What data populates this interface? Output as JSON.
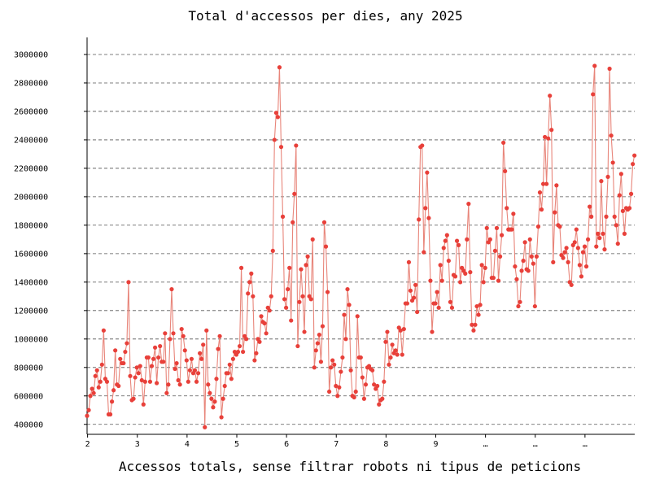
{
  "chart_data": {
    "type": "line",
    "title": "Total d'accessos per dies, any 2025",
    "xlabel": "Accessos totals, sense filtrar robots ni tipus de peticions",
    "ylabel": "",
    "grid": true,
    "ylim": [
      330000,
      3120000
    ],
    "xlim": [
      1.99,
      13.0
    ],
    "y_ticks": [
      400000,
      600000,
      800000,
      1000000,
      1200000,
      1400000,
      1600000,
      1800000,
      2000000,
      2200000,
      2400000,
      2600000,
      2800000,
      3000000
    ],
    "y_tick_labels": [
      "400000",
      "600000",
      "800000",
      "1000000",
      "1200000",
      "1400000",
      "1600000",
      "1800000",
      "2000000",
      "2200000",
      "2400000",
      "2600000",
      "2800000",
      "3000000"
    ],
    "x_ticks": [
      2,
      3,
      4,
      5,
      6,
      7,
      8,
      9,
      10,
      11,
      12
    ],
    "x_tick_labels": [
      "2",
      "3",
      "4",
      "5",
      "6",
      "7",
      "8",
      "9",
      "…",
      "…",
      "…"
    ],
    "colors": {
      "line": "#e8857a",
      "point": "#e8403a",
      "grid": "#555555"
    },
    "series": [
      {
        "values": [
          460000,
          500000,
          600000,
          650000,
          620000,
          740000,
          780000,
          660000,
          700000,
          820000,
          1060000,
          720000,
          700000,
          470000,
          470000,
          560000,
          640000,
          920000,
          680000,
          670000,
          860000,
          830000,
          830000,
          910000,
          970000,
          1400000,
          740000,
          570000,
          580000,
          730000,
          800000,
          760000,
          810000,
          710000,
          540000,
          700000,
          870000,
          870000,
          700000,
          810000,
          860000,
          940000,
          690000,
          870000,
          950000,
          840000,
          840000,
          1040000,
          620000,
          680000,
          1000000,
          1350000,
          1040000,
          790000,
          830000,
          710000,
          680000,
          1070000,
          1020000,
          920000,
          850000,
          700000,
          780000,
          860000,
          760000,
          780000,
          700000,
          760000,
          900000,
          860000,
          960000,
          380000,
          1060000,
          680000,
          620000,
          580000,
          520000,
          560000,
          720000,
          930000,
          1020000,
          450000,
          580000,
          670000,
          760000,
          760000,
          820000,
          720000,
          860000,
          910000,
          890000,
          910000,
          950000,
          1500000,
          910000,
          1020000,
          1000000,
          1320000,
          1400000,
          1460000,
          1300000,
          850000,
          900000,
          1000000,
          980000,
          1160000,
          1120000,
          1110000,
          1040000,
          1220000,
          1200000,
          1300000,
          1620000,
          2400000,
          2590000,
          2560000,
          2910000,
          2350000,
          1860000,
          1280000,
          1220000,
          1350000,
          1500000,
          1130000,
          1820000,
          2020000,
          2360000,
          950000,
          1260000,
          1490000,
          1300000,
          1050000,
          1520000,
          1580000,
          1300000,
          1280000,
          1700000,
          800000,
          920000,
          970000,
          1030000,
          840000,
          1090000,
          1820000,
          1650000,
          1330000,
          630000,
          800000,
          850000,
          820000,
          670000,
          600000,
          660000,
          770000,
          870000,
          1170000,
          1000000,
          1350000,
          1240000,
          780000,
          600000,
          590000,
          630000,
          1160000,
          870000,
          870000,
          730000,
          580000,
          680000,
          800000,
          810000,
          790000,
          780000,
          680000,
          650000,
          670000,
          540000,
          570000,
          580000,
          700000,
          980000,
          1050000,
          820000,
          870000,
          960000,
          900000,
          920000,
          890000,
          1080000,
          1060000,
          890000,
          1070000,
          1250000,
          1250000,
          1540000,
          1340000,
          1270000,
          1290000,
          1380000,
          1190000,
          1840000,
          2350000,
          2360000,
          1610000,
          1920000,
          2170000,
          1850000,
          1410000,
          1050000,
          1250000,
          1250000,
          1330000,
          1220000,
          1520000,
          1410000,
          1640000,
          1690000,
          1730000,
          1550000,
          1260000,
          1220000,
          1450000,
          1440000,
          1690000,
          1660000,
          1400000,
          1500000,
          1480000,
          1460000,
          1700000,
          1950000,
          1470000,
          1100000,
          1060000,
          1100000,
          1230000,
          1170000,
          1240000,
          1520000,
          1400000,
          1500000,
          1780000,
          1680000,
          1700000,
          1430000,
          1430000,
          1620000,
          1780000,
          1410000,
          1580000,
          1730000,
          2380000,
          2180000,
          1920000,
          1770000,
          1770000,
          1770000,
          1880000,
          1510000,
          1420000,
          1230000,
          1260000,
          1480000,
          1550000,
          1680000,
          1490000,
          1480000,
          1700000,
          1580000,
          1530000,
          1230000,
          1580000,
          1790000,
          2030000,
          1910000,
          2090000,
          2420000,
          2090000,
          2410000,
          2710000,
          2470000,
          1540000,
          1890000,
          2080000,
          1800000,
          1790000,
          1590000,
          1570000,
          1610000,
          1640000,
          1540000,
          1400000,
          1380000,
          1660000,
          1680000,
          1770000,
          1640000,
          1520000,
          1440000,
          1610000,
          1650000,
          1510000,
          1700000,
          1930000,
          1860000,
          2720000,
          2920000,
          1650000,
          1740000,
          1710000,
          2110000,
          1740000,
          1630000,
          1860000,
          2140000,
          2900000,
          2430000,
          2240000,
          1860000,
          1800000,
          1670000,
          2010000,
          2160000,
          1900000,
          1740000,
          1920000,
          1910000,
          1920000,
          2020000,
          2230000,
          2290000
        ]
      }
    ]
  }
}
